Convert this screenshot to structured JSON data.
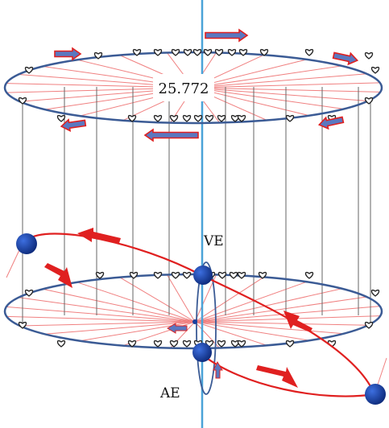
{
  "labels": {
    "value": "25.772",
    "ve": "VE",
    "ae": "AE"
  },
  "colors": {
    "background": "#ffffff",
    "axis": "#4aa3d8",
    "ellipse": "#3b5b95",
    "rays": "#f08080",
    "verticals": "#555555",
    "orbit": "#e02020",
    "node": "#1a3fa0",
    "arrow_fill": "#5a78c0",
    "arrow_border": "#e02020",
    "heart": "#222222"
  },
  "icons": {
    "marker": "heart-marker-icon",
    "body": "blue-sphere-icon",
    "direction": "direction-arrow-icon"
  }
}
